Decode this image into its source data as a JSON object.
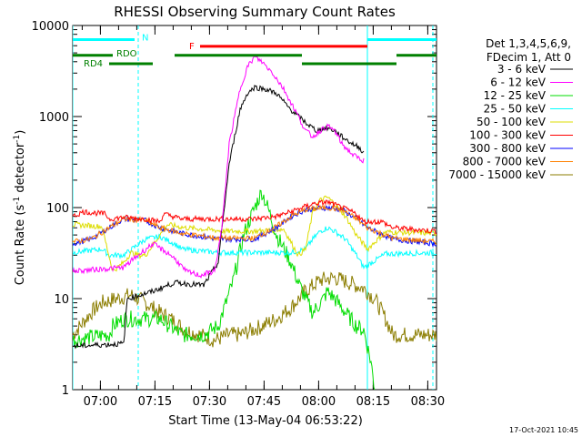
{
  "chart_data": {
    "type": "line",
    "title": "RHESSI Observing Summary Count Rates",
    "xlabel": "Start Time (13-May-04 06:53:22)",
    "ylabel_main": "Count Rate (s",
    "ylabel_sup": "-1",
    "ylabel_rest": " detector",
    "ylabel_end": ")",
    "x_unit": "minutes since 06:53:22",
    "x_range": [
      0,
      100
    ],
    "y_scale": "log",
    "ylim": [
      1,
      10000
    ],
    "x_ticks": [
      {
        "x": 7.6,
        "label": "07:00"
      },
      {
        "x": 22.6,
        "label": "07:15"
      },
      {
        "x": 37.6,
        "label": "07:30"
      },
      {
        "x": 52.6,
        "label": "07:45"
      },
      {
        "x": 67.6,
        "label": "08:00"
      },
      {
        "x": 82.6,
        "label": "08:15"
      },
      {
        "x": 97.6,
        "label": "08:30"
      }
    ],
    "y_ticks": [
      {
        "y": 1,
        "label": "1"
      },
      {
        "y": 10,
        "label": "10"
      },
      {
        "y": 100,
        "label": "100"
      },
      {
        "y": 1000,
        "label": "1000"
      },
      {
        "y": 10000,
        "label": "10000"
      }
    ],
    "legend": {
      "placement": "right",
      "header": [
        "Det 1,3,4,5,6,9,",
        "FDecim 1, Att 0"
      ]
    },
    "series": [
      {
        "name": "3 - 6 keV",
        "color": "#000000",
        "points": [
          [
            0,
            3
          ],
          [
            14,
            3.2
          ],
          [
            15,
            10
          ],
          [
            22,
            12
          ],
          [
            28,
            15
          ],
          [
            36,
            14
          ],
          [
            40,
            25
          ],
          [
            43,
            300
          ],
          [
            46,
            1200
          ],
          [
            48,
            1800
          ],
          [
            50,
            2100
          ],
          [
            53,
            2000
          ],
          [
            56,
            1800
          ],
          [
            59,
            1300
          ],
          [
            62,
            1000
          ],
          [
            65,
            800
          ],
          [
            67,
            700
          ],
          [
            70,
            750
          ],
          [
            72,
            700
          ],
          [
            74,
            600
          ],
          [
            77,
            500
          ],
          [
            79,
            450
          ],
          [
            80,
            400
          ]
        ]
      },
      {
        "name": "6 - 12 keV",
        "color": "#ff00ff",
        "points": [
          [
            0,
            20
          ],
          [
            14,
            22
          ],
          [
            18,
            30
          ],
          [
            22,
            40
          ],
          [
            27,
            30
          ],
          [
            29,
            25
          ],
          [
            31,
            20
          ],
          [
            35,
            18
          ],
          [
            39,
            20
          ],
          [
            41,
            60
          ],
          [
            43,
            500
          ],
          [
            46,
            2000
          ],
          [
            48,
            3500
          ],
          [
            50,
            4500
          ],
          [
            52,
            4000
          ],
          [
            55,
            3000
          ],
          [
            58,
            2000
          ],
          [
            61,
            1200
          ],
          [
            64,
            700
          ],
          [
            66,
            600
          ],
          [
            68,
            700
          ],
          [
            70,
            780
          ],
          [
            72,
            700
          ],
          [
            74,
            500
          ],
          [
            77,
            380
          ],
          [
            79,
            340
          ],
          [
            80,
            330
          ]
        ]
      },
      {
        "name": "12 - 25 keV",
        "color": "#00dd00",
        "points": [
          [
            0,
            3.5
          ],
          [
            9,
            4
          ],
          [
            10,
            4
          ],
          [
            11,
            5
          ],
          [
            14,
            6
          ],
          [
            21,
            6
          ],
          [
            24,
            6
          ],
          [
            30,
            4
          ],
          [
            36,
            4
          ],
          [
            40,
            5
          ],
          [
            44,
            15
          ],
          [
            47,
            50
          ],
          [
            50,
            100
          ],
          [
            52,
            150
          ],
          [
            54,
            90
          ],
          [
            56,
            50
          ],
          [
            60,
            25
          ],
          [
            62,
            15
          ],
          [
            64,
            10
          ],
          [
            66,
            7
          ],
          [
            69,
            10
          ],
          [
            70,
            12
          ],
          [
            72,
            10
          ],
          [
            75,
            7
          ],
          [
            78,
            5
          ],
          [
            80,
            4.5
          ],
          [
            82,
            2
          ],
          [
            83,
            1
          ]
        ]
      },
      {
        "name": "25 - 50 keV",
        "color": "#00ffff",
        "points": [
          [
            0,
            32
          ],
          [
            8,
            35
          ],
          [
            10,
            30
          ],
          [
            14,
            30
          ],
          [
            20,
            45
          ],
          [
            24,
            48
          ],
          [
            28,
            40
          ],
          [
            30,
            35
          ],
          [
            40,
            32
          ],
          [
            50,
            32
          ],
          [
            60,
            32
          ],
          [
            64,
            35
          ],
          [
            66,
            45
          ],
          [
            68,
            55
          ],
          [
            70,
            60
          ],
          [
            72,
            55
          ],
          [
            75,
            45
          ],
          [
            78,
            30
          ],
          [
            80,
            22
          ],
          [
            86,
            31
          ],
          [
            100,
            32
          ]
        ]
      },
      {
        "name": "50 - 100 keV",
        "color": "#dddd00",
        "points": [
          [
            0,
            65
          ],
          [
            8,
            62
          ],
          [
            11,
            20
          ],
          [
            14,
            25
          ],
          [
            16,
            32
          ],
          [
            18,
            30
          ],
          [
            20,
            30
          ],
          [
            26,
            65
          ],
          [
            31,
            60
          ],
          [
            38,
            57
          ],
          [
            42,
            55
          ],
          [
            50,
            55
          ],
          [
            58,
            58
          ],
          [
            62,
            30
          ],
          [
            64,
            35
          ],
          [
            66,
            90
          ],
          [
            68,
            120
          ],
          [
            70,
            130
          ],
          [
            72,
            110
          ],
          [
            75,
            80
          ],
          [
            78,
            50
          ],
          [
            81,
            35
          ],
          [
            86,
            54
          ],
          [
            100,
            52
          ]
        ]
      },
      {
        "name": "100 - 300 keV",
        "color": "#ff0000",
        "points": [
          [
            0,
            80
          ],
          [
            3,
            90
          ],
          [
            9,
            85
          ],
          [
            10,
            75
          ],
          [
            14,
            78
          ],
          [
            20,
            75
          ],
          [
            24,
            70
          ],
          [
            25,
            85
          ],
          [
            30,
            75
          ],
          [
            40,
            75
          ],
          [
            50,
            75
          ],
          [
            56,
            80
          ],
          [
            60,
            90
          ],
          [
            66,
            110
          ],
          [
            70,
            115
          ],
          [
            74,
            100
          ],
          [
            78,
            85
          ],
          [
            80,
            70
          ],
          [
            85,
            70
          ],
          [
            88,
            60
          ],
          [
            100,
            55
          ]
        ]
      },
      {
        "name": "300 - 800 keV",
        "color": "#0000ff",
        "points": [
          [
            0,
            40
          ],
          [
            5,
            45
          ],
          [
            10,
            60
          ],
          [
            14,
            75
          ],
          [
            20,
            72
          ],
          [
            24,
            60
          ],
          [
            30,
            52
          ],
          [
            40,
            45
          ],
          [
            50,
            45
          ],
          [
            56,
            60
          ],
          [
            60,
            80
          ],
          [
            64,
            95
          ],
          [
            70,
            100
          ],
          [
            74,
            95
          ],
          [
            78,
            75
          ],
          [
            81,
            60
          ],
          [
            88,
            45
          ],
          [
            100,
            40
          ]
        ]
      },
      {
        "name": "800 - 7000 keV",
        "color": "#ff8000",
        "points": [
          [
            0,
            42
          ],
          [
            5,
            45
          ],
          [
            10,
            60
          ],
          [
            14,
            75
          ],
          [
            20,
            72
          ],
          [
            24,
            60
          ],
          [
            30,
            52
          ],
          [
            40,
            46
          ],
          [
            50,
            46
          ],
          [
            56,
            62
          ],
          [
            60,
            80
          ],
          [
            64,
            95
          ],
          [
            70,
            100
          ],
          [
            74,
            95
          ],
          [
            78,
            75
          ],
          [
            81,
            60
          ],
          [
            88,
            46
          ],
          [
            100,
            42
          ]
        ]
      },
      {
        "name": "7000 - 15000 keV",
        "color": "#8b7d00",
        "points": [
          [
            0,
            4
          ],
          [
            5,
            7
          ],
          [
            8,
            9
          ],
          [
            12,
            10
          ],
          [
            16,
            11
          ],
          [
            20,
            9
          ],
          [
            24,
            7
          ],
          [
            27,
            6
          ],
          [
            31,
            4.5
          ],
          [
            35,
            4
          ],
          [
            39,
            3.5
          ],
          [
            43,
            4
          ],
          [
            46,
            4
          ],
          [
            52,
            5
          ],
          [
            56,
            6
          ],
          [
            60,
            8
          ],
          [
            64,
            12
          ],
          [
            68,
            16
          ],
          [
            72,
            17
          ],
          [
            76,
            15
          ],
          [
            80,
            13
          ],
          [
            83,
            10
          ],
          [
            86,
            6
          ],
          [
            88,
            4
          ],
          [
            100,
            4
          ]
        ]
      }
    ],
    "state_bars": [
      {
        "label": "N",
        "color": "#00ffff",
        "y": 7000,
        "label_x": 19,
        "label_y": 7500,
        "segments": [
          [
            0,
            17
          ],
          [
            81,
            100
          ]
        ]
      },
      {
        "label": "F",
        "color": "#ff0000",
        "y": 5900,
        "label_x": 32,
        "label_y": 6000,
        "segments": [
          [
            35,
            81
          ]
        ]
      },
      {
        "label": "RDO",
        "color": "#008000",
        "y": 4700,
        "label_x": 12,
        "label_y": 5000,
        "segments": [
          [
            0,
            11
          ],
          [
            28,
            63
          ],
          [
            89,
            100
          ]
        ]
      },
      {
        "label": "RD4",
        "color": "#008000",
        "y": 3800,
        "label_x": 3,
        "label_y": 3900,
        "segments": [
          [
            10,
            22
          ],
          [
            63,
            89
          ]
        ]
      }
    ],
    "vlines": [
      {
        "x": 0,
        "color": "#00ffff",
        "style": "solid"
      },
      {
        "x": 18,
        "color": "#00ffff",
        "style": "dashed"
      },
      {
        "x": 81,
        "color": "#00ffff",
        "style": "solid"
      },
      {
        "x": 99,
        "color": "#00ffff",
        "style": "dashed"
      }
    ],
    "footer_date": "17-Oct-2021 10:45"
  }
}
